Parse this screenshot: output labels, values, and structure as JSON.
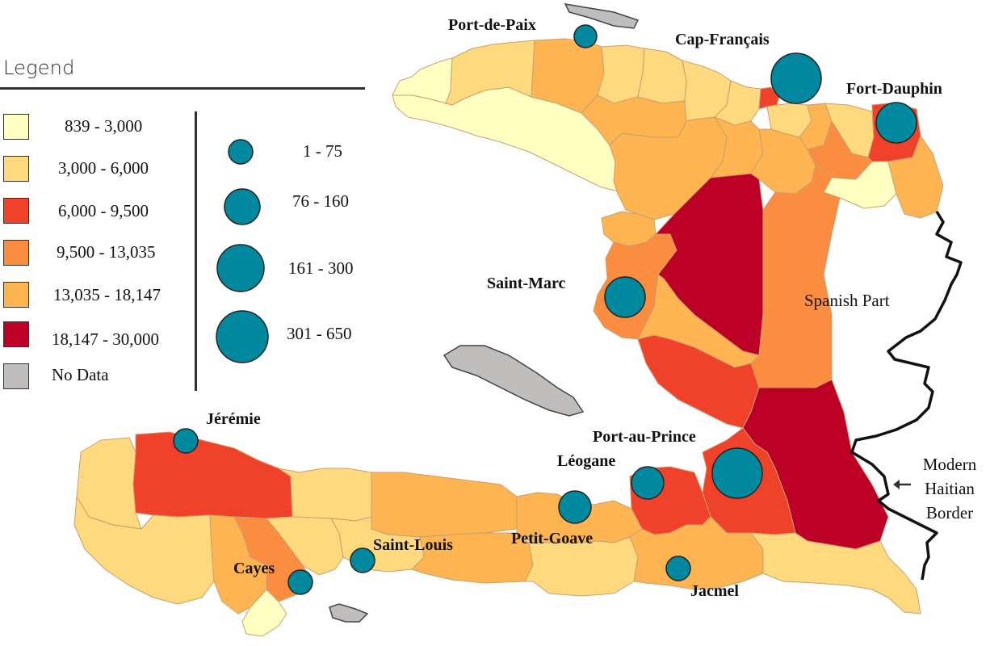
{
  "legend": {
    "title": "Legend",
    "ranges": [
      {
        "label": "839 - 3,000",
        "color": "#ffffc2"
      },
      {
        "label": "3,000 - 6,000",
        "color": "#fed97d"
      },
      {
        "label": "6,000 - 9,500",
        "color": "#f0412a"
      },
      {
        "label": "9,500 - 13,035",
        "color": "#fb8d40"
      },
      {
        "label": "13,035 - 18,147",
        "color": "#fdb451"
      },
      {
        "label": "18,147 - 30,000",
        "color": "#bd0026"
      },
      {
        "label": "No Data",
        "color": "#c0bdbd"
      }
    ],
    "circles": [
      {
        "label": "1 - 75"
      },
      {
        "label": "76 - 160"
      },
      {
        "label": "161 - 300"
      },
      {
        "label": "301 - 650"
      }
    ],
    "circle_color": "#00899e"
  },
  "cities": [
    {
      "name": "Port-de-Paix"
    },
    {
      "name": "Cap-Français"
    },
    {
      "name": "Fort-Dauphin"
    },
    {
      "name": "Saint-Marc"
    },
    {
      "name": "Jérémie"
    },
    {
      "name": "Port-au-Prince"
    },
    {
      "name": "Léogane"
    },
    {
      "name": "Petit-Goave"
    },
    {
      "name": "Saint-Louis"
    },
    {
      "name": "Cayes"
    },
    {
      "name": "Jacmel"
    }
  ],
  "labels": {
    "spanish_part": "Spanish Part",
    "border_line1": "Modern",
    "border_line2": "Haitian",
    "border_line3": "Border"
  }
}
